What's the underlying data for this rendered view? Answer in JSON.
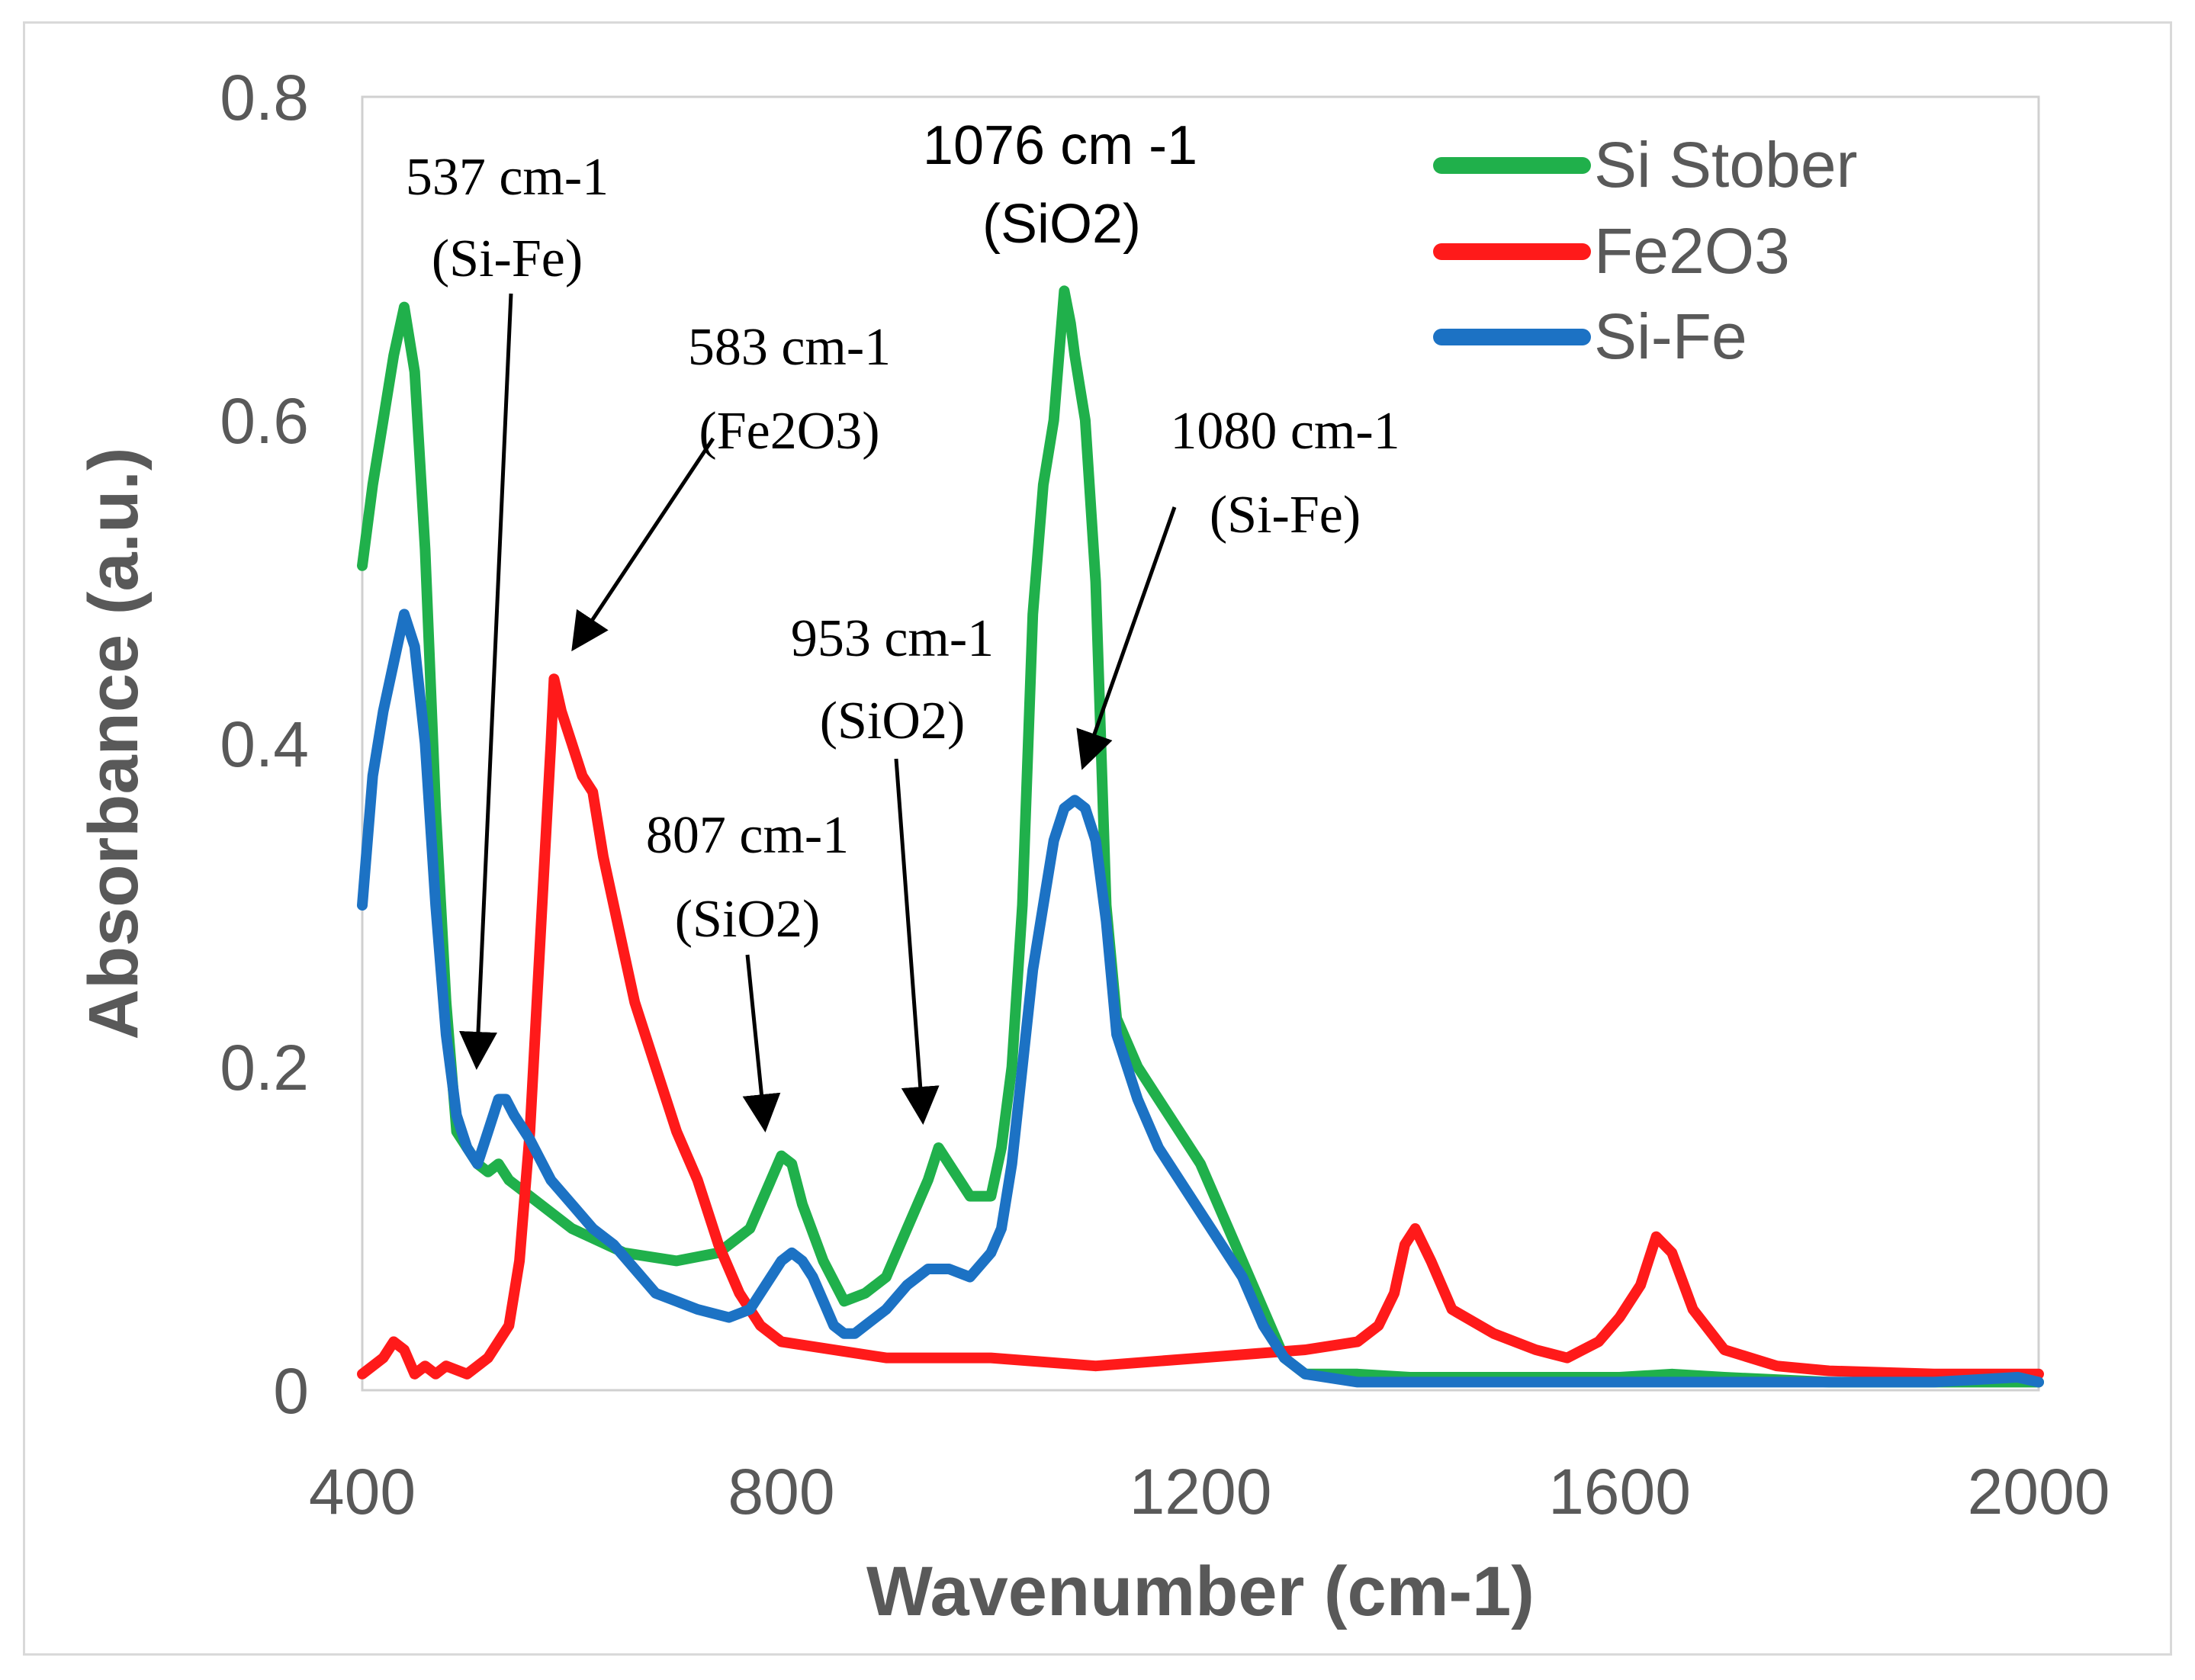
{
  "chart_data": {
    "type": "line",
    "xlabel": "Wavenumber (cm-1)",
    "ylabel": "Absorbance (a.u.)",
    "xlim": [
      400,
      2000
    ],
    "ylim": [
      0,
      0.8
    ],
    "x_ticks": [
      "400",
      "800",
      "1200",
      "1600",
      "2000"
    ],
    "y_ticks": [
      "0",
      "0.2",
      "0.4",
      "0.6",
      "0.8"
    ],
    "grid": false,
    "legend_position": "top-right",
    "series": [
      {
        "name": "Si Stober",
        "color": "#20b04b",
        "x": [
          400,
          410,
          420,
          430,
          440,
          450,
          460,
          470,
          480,
          490,
          500,
          510,
          520,
          530,
          540,
          560,
          600,
          650,
          700,
          740,
          770,
          790,
          800,
          810,
          820,
          840,
          860,
          880,
          900,
          920,
          940,
          950,
          960,
          980,
          1000,
          1010,
          1020,
          1030,
          1040,
          1050,
          1060,
          1065,
          1070,
          1076,
          1080,
          1085,
          1090,
          1100,
          1110,
          1120,
          1140,
          1160,
          1180,
          1200,
          1220,
          1240,
          1260,
          1280,
          1300,
          1350,
          1400,
          1500,
          1600,
          1650,
          1700,
          1800,
          1900,
          2000
        ],
        "y": [
          0.51,
          0.56,
          0.6,
          0.64,
          0.67,
          0.63,
          0.52,
          0.36,
          0.24,
          0.16,
          0.15,
          0.14,
          0.135,
          0.14,
          0.13,
          0.12,
          0.1,
          0.085,
          0.08,
          0.085,
          0.1,
          0.13,
          0.145,
          0.14,
          0.115,
          0.08,
          0.055,
          0.06,
          0.07,
          0.1,
          0.13,
          0.15,
          0.14,
          0.12,
          0.12,
          0.15,
          0.2,
          0.3,
          0.48,
          0.56,
          0.6,
          0.64,
          0.68,
          0.66,
          0.64,
          0.62,
          0.6,
          0.5,
          0.3,
          0.23,
          0.2,
          0.18,
          0.16,
          0.14,
          0.11,
          0.08,
          0.05,
          0.02,
          0.01,
          0.01,
          0.008,
          0.008,
          0.008,
          0.01,
          0.008,
          0.005,
          0.005,
          0.005
        ]
      },
      {
        "name": "Fe2O3",
        "color": "#ff1a1a",
        "x": [
          400,
          420,
          430,
          440,
          450,
          460,
          470,
          480,
          500,
          520,
          540,
          550,
          560,
          570,
          580,
          583,
          590,
          600,
          610,
          620,
          630,
          640,
          650,
          660,
          670,
          680,
          700,
          720,
          740,
          760,
          780,
          800,
          850,
          900,
          1000,
          1100,
          1200,
          1300,
          1350,
          1370,
          1385,
          1395,
          1405,
          1420,
          1440,
          1480,
          1520,
          1550,
          1580,
          1600,
          1620,
          1635,
          1650,
          1670,
          1700,
          1750,
          1800,
          1900,
          2000
        ],
        "y": [
          0.01,
          0.02,
          0.03,
          0.025,
          0.01,
          0.015,
          0.01,
          0.015,
          0.01,
          0.02,
          0.04,
          0.08,
          0.16,
          0.28,
          0.4,
          0.44,
          0.42,
          0.4,
          0.38,
          0.37,
          0.33,
          0.3,
          0.27,
          0.24,
          0.22,
          0.2,
          0.16,
          0.13,
          0.09,
          0.06,
          0.04,
          0.03,
          0.025,
          0.02,
          0.02,
          0.015,
          0.02,
          0.025,
          0.03,
          0.04,
          0.06,
          0.09,
          0.1,
          0.08,
          0.05,
          0.035,
          0.025,
          0.02,
          0.03,
          0.045,
          0.065,
          0.095,
          0.085,
          0.05,
          0.025,
          0.015,
          0.012,
          0.01,
          0.01
        ]
      },
      {
        "name": "Si-Fe",
        "color": "#1c72c4",
        "x": [
          400,
          410,
          420,
          430,
          440,
          450,
          460,
          470,
          480,
          490,
          500,
          510,
          520,
          530,
          537,
          545,
          560,
          580,
          600,
          620,
          640,
          660,
          680,
          700,
          720,
          750,
          770,
          790,
          800,
          810,
          820,
          830,
          840,
          850,
          860,
          870,
          880,
          900,
          920,
          940,
          960,
          980,
          1000,
          1010,
          1020,
          1030,
          1040,
          1050,
          1060,
          1070,
          1080,
          1090,
          1100,
          1110,
          1120,
          1140,
          1160,
          1180,
          1200,
          1220,
          1240,
          1260,
          1280,
          1300,
          1350,
          1400,
          1500,
          1600,
          1700,
          1800,
          1900,
          1980,
          2000
        ],
        "y": [
          0.3,
          0.38,
          0.42,
          0.45,
          0.48,
          0.46,
          0.4,
          0.3,
          0.22,
          0.17,
          0.15,
          0.14,
          0.16,
          0.18,
          0.18,
          0.17,
          0.155,
          0.13,
          0.115,
          0.1,
          0.09,
          0.075,
          0.06,
          0.055,
          0.05,
          0.045,
          0.05,
          0.07,
          0.08,
          0.085,
          0.08,
          0.07,
          0.055,
          0.04,
          0.035,
          0.035,
          0.04,
          0.05,
          0.065,
          0.075,
          0.075,
          0.07,
          0.085,
          0.1,
          0.14,
          0.2,
          0.26,
          0.3,
          0.34,
          0.36,
          0.365,
          0.36,
          0.34,
          0.29,
          0.22,
          0.18,
          0.15,
          0.13,
          0.11,
          0.09,
          0.07,
          0.04,
          0.02,
          0.01,
          0.005,
          0.005,
          0.005,
          0.005,
          0.005,
          0.005,
          0.005,
          0.008,
          0.005
        ]
      }
    ],
    "annotations": [
      {
        "line1": "537 cm-1",
        "line2": "(Si-Fe)"
      },
      {
        "line1": "583 cm-1",
        "line2": "(Fe2O3)"
      },
      {
        "line1": "1076 cm -1",
        "line2": "(SiO2)"
      },
      {
        "line1": "1080 cm-1",
        "line2": "(Si-Fe)"
      },
      {
        "line1": "953 cm-1",
        "line2": "(SiO2)"
      },
      {
        "line1": "807 cm-1",
        "line2": "(SiO2)"
      }
    ]
  }
}
